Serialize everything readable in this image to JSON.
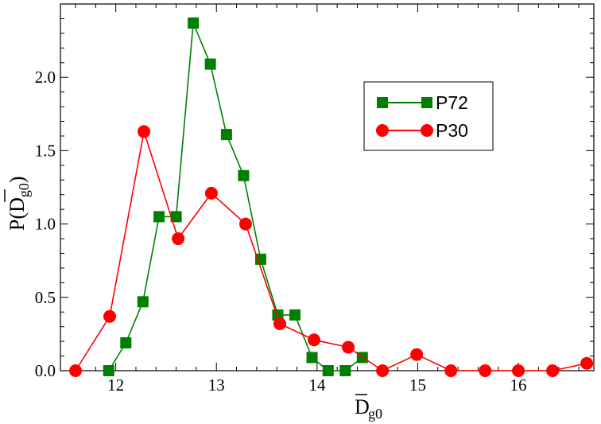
{
  "chart_data": {
    "type": "line",
    "xlabel": {
      "main": "D",
      "sub": "g0"
    },
    "ylabel": {
      "main": "P(D",
      "sub": "g0",
      "close": ")"
    },
    "xlim": [
      11.45,
      16.75
    ],
    "ylim": [
      0,
      2.5
    ],
    "xticks": [
      12,
      13,
      14,
      15,
      16
    ],
    "xtick_labels": [
      "12",
      "13",
      "14",
      "15",
      "16"
    ],
    "yticks": [
      0,
      0.5,
      1.0,
      1.5,
      2.0
    ],
    "ytick_labels": [
      "0.0",
      "0.5",
      "1.0",
      "1.5",
      "2.0"
    ],
    "legend_position": "upper-right",
    "series": [
      {
        "name": "P72",
        "color": "#008000",
        "marker": "square",
        "x": [
          11.93,
          12.1,
          12.27,
          12.43,
          12.6,
          12.77,
          12.94,
          13.1,
          13.27,
          13.44,
          13.61,
          13.78,
          13.95,
          14.11,
          14.28,
          14.45
        ],
        "y": [
          0.0,
          0.19,
          0.47,
          1.05,
          1.05,
          2.37,
          2.09,
          1.61,
          1.33,
          0.76,
          0.38,
          0.38,
          0.09,
          0.0,
          0.0,
          0.09
        ]
      },
      {
        "name": "P30",
        "color": "#ff0000",
        "marker": "circle",
        "x": [
          11.6,
          11.94,
          12.28,
          12.62,
          12.95,
          13.29,
          13.63,
          13.97,
          14.31,
          14.65,
          14.99,
          15.33,
          15.67,
          16.0,
          16.34,
          16.68
        ],
        "y": [
          0.0,
          0.37,
          1.63,
          0.9,
          1.21,
          1.0,
          0.32,
          0.21,
          0.16,
          0.0,
          0.11,
          0.0,
          0.0,
          0.0,
          0.0,
          0.05
        ]
      }
    ]
  }
}
